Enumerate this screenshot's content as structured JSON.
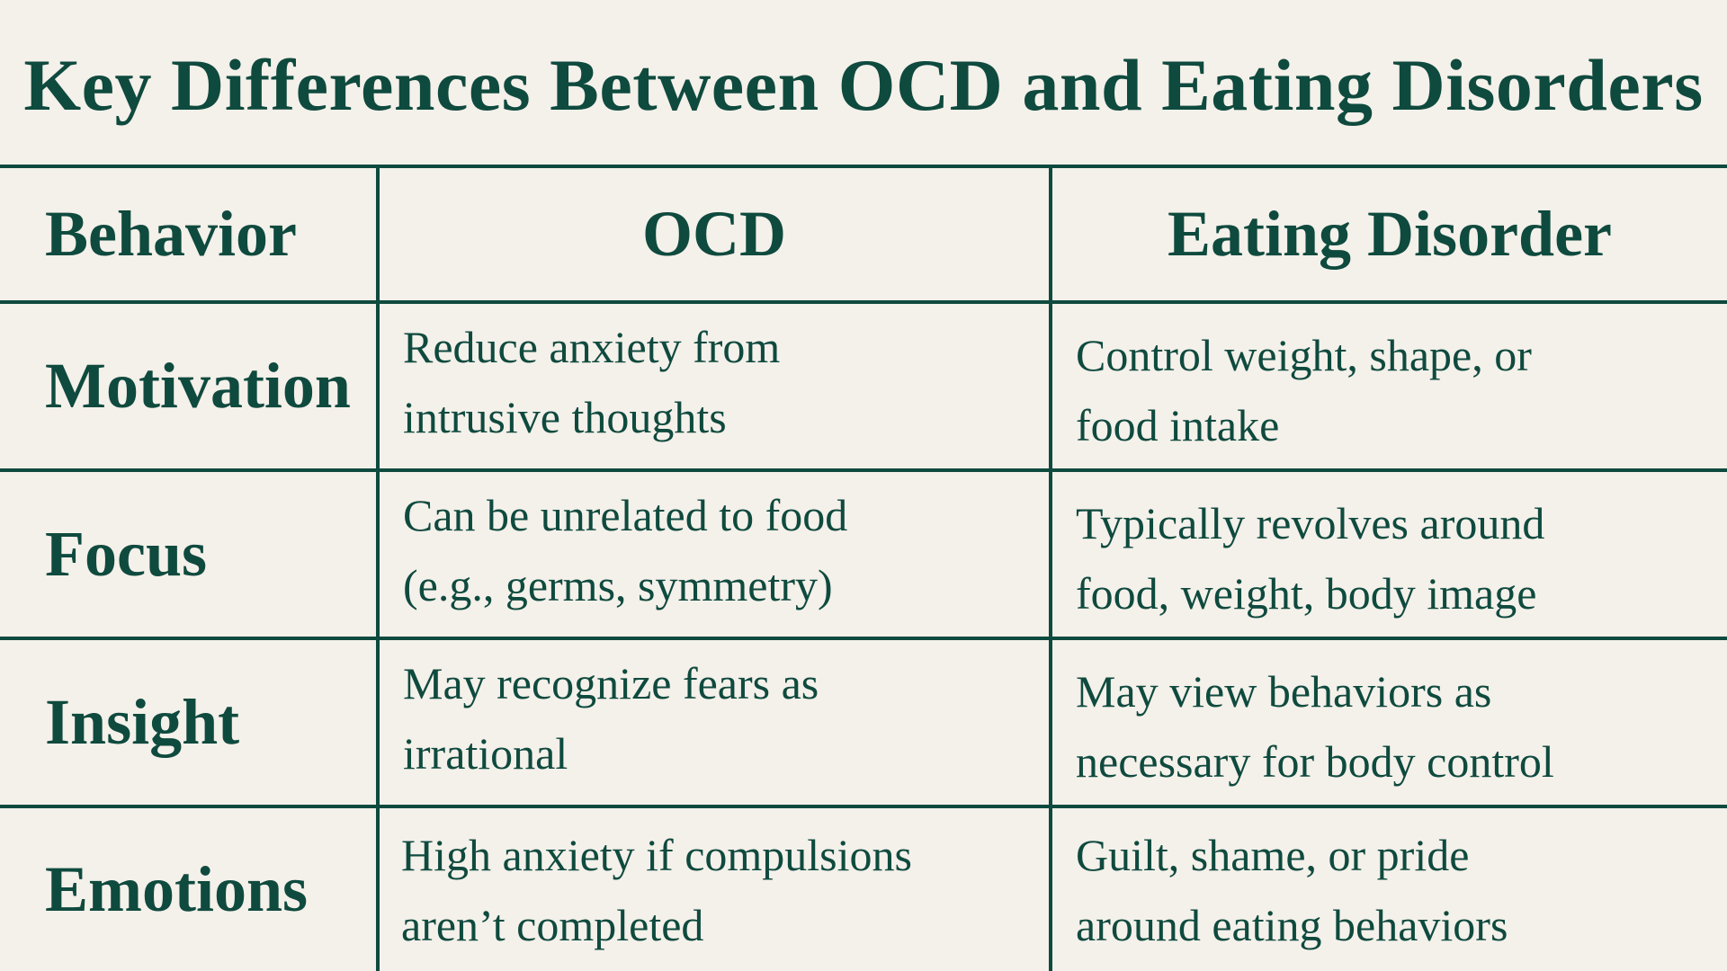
{
  "title": "Key Differences Between OCD and Eating Disorders",
  "table": {
    "headers": [
      "Behavior",
      "OCD",
      "Eating Disorder"
    ],
    "rows": [
      {
        "behavior": "Motivation",
        "ocd": [
          "Reduce anxiety from",
          "intrusive thoughts"
        ],
        "ed": [
          "Control weight, shape, or",
          "food intake"
        ]
      },
      {
        "behavior": "Focus",
        "ocd": [
          "Can be unrelated to food",
          "(e.g., germs, symmetry)"
        ],
        "ed": [
          "Typically revolves around",
          "food, weight, body image"
        ]
      },
      {
        "behavior": "Insight",
        "ocd": [
          "May recognize fears as",
          "irrational"
        ],
        "ed": [
          "May view behaviors as",
          "necessary for body control"
        ]
      },
      {
        "behavior": "Emotions",
        "ocd": [
          "High anxiety if compulsions",
          "aren’t completed"
        ],
        "ed": [
          "Guilt, shame, or pride",
          "around eating behaviors"
        ]
      }
    ]
  }
}
